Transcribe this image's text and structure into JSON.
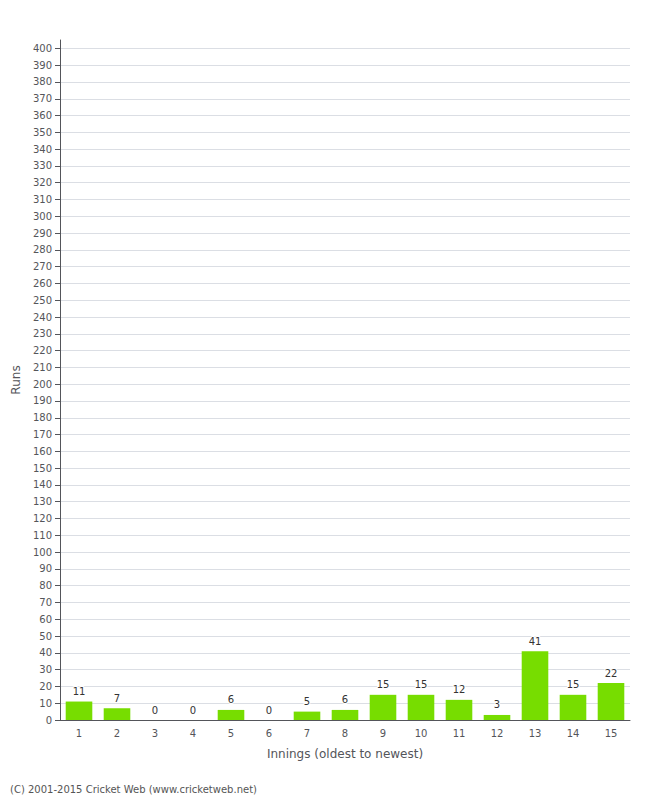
{
  "chart_data": {
    "type": "bar",
    "xlabel": "Innings (oldest to newest)",
    "ylabel": "Runs",
    "categories": [
      "1",
      "2",
      "3",
      "4",
      "5",
      "6",
      "7",
      "8",
      "9",
      "10",
      "11",
      "12",
      "13",
      "14",
      "15"
    ],
    "values": [
      11,
      7,
      0,
      0,
      6,
      0,
      5,
      6,
      15,
      15,
      12,
      3,
      41,
      15,
      22
    ],
    "color": "#77dd00",
    "ylim": [
      0,
      405
    ],
    "yticks": [
      0,
      10,
      20,
      30,
      40,
      50,
      60,
      70,
      80,
      90,
      100,
      110,
      120,
      130,
      140,
      150,
      160,
      170,
      180,
      190,
      200,
      210,
      220,
      230,
      240,
      250,
      260,
      270,
      280,
      290,
      300,
      310,
      320,
      330,
      340,
      350,
      360,
      370,
      380,
      390,
      400
    ],
    "grid": true,
    "data_labels": true,
    "footer": "(C) 2001-2015 Cricket Web (www.cricketweb.net)"
  }
}
